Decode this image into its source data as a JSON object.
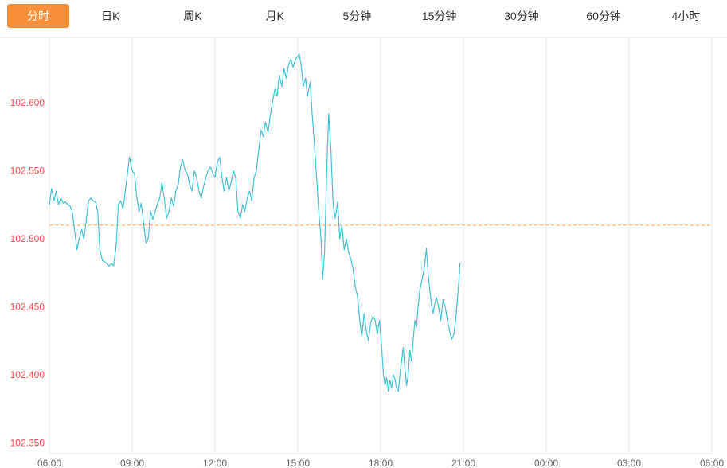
{
  "tabs": {
    "active_id": "intraday",
    "active_bg": "#f78f3d",
    "active_text": "#ffffff",
    "items": [
      {
        "id": "intraday",
        "label": "分时"
      },
      {
        "id": "daily-k",
        "label": "日K"
      },
      {
        "id": "weekly-k",
        "label": "周K"
      },
      {
        "id": "monthly-k",
        "label": "月K"
      },
      {
        "id": "5min",
        "label": "5分钟"
      },
      {
        "id": "15min",
        "label": "15分钟"
      },
      {
        "id": "30min",
        "label": "30分钟"
      },
      {
        "id": "60min",
        "label": "60分钟"
      },
      {
        "id": "4hour",
        "label": "4小时"
      }
    ]
  },
  "chart_data": {
    "type": "line",
    "x_range_hours": [
      0,
      24
    ],
    "y_range": [
      102.342,
      102.648
    ],
    "grid": "vertical-only",
    "legend": "none",
    "colors": {
      "grid": "#e8e8e8",
      "x_label": "#666666",
      "y_label": "#f05050",
      "line": "#45c1d5",
      "ref_line": "#f8a054"
    },
    "x_ticks": [
      {
        "t": 0,
        "label": "06:00"
      },
      {
        "t": 3,
        "label": "09:00"
      },
      {
        "t": 6,
        "label": "12:00"
      },
      {
        "t": 9,
        "label": "15:00"
      },
      {
        "t": 12,
        "label": "18:00"
      },
      {
        "t": 15,
        "label": "21:00"
      },
      {
        "t": 18,
        "label": "00:00"
      },
      {
        "t": 21,
        "label": "03:00"
      },
      {
        "t": 24,
        "label": "06:00"
      }
    ],
    "y_ticks": [
      {
        "v": 102.6,
        "label": "102.600"
      },
      {
        "v": 102.55,
        "label": "102.550"
      },
      {
        "v": 102.5,
        "label": "102.500"
      },
      {
        "v": 102.45,
        "label": "102.450"
      },
      {
        "v": 102.4,
        "label": "102.400"
      },
      {
        "v": 102.35,
        "label": "102.350"
      }
    ],
    "ref_line": {
      "value": 102.51,
      "style": "dashed"
    },
    "series": [
      {
        "name": "price",
        "points": [
          [
            0,
            102.525
          ],
          [
            0.08,
            102.537
          ],
          [
            0.17,
            102.528
          ],
          [
            0.25,
            102.535
          ],
          [
            0.33,
            102.525
          ],
          [
            0.42,
            102.53
          ],
          [
            0.5,
            102.526
          ],
          [
            0.58,
            102.527
          ],
          [
            0.67,
            102.525
          ],
          [
            0.75,
            102.524
          ],
          [
            0.83,
            102.52
          ],
          [
            0.92,
            102.505
          ],
          [
            1,
            102.492
          ],
          [
            1.08,
            102.5
          ],
          [
            1.17,
            102.507
          ],
          [
            1.25,
            102.5
          ],
          [
            1.33,
            102.512
          ],
          [
            1.42,
            102.528
          ],
          [
            1.5,
            102.53
          ],
          [
            1.58,
            102.528
          ],
          [
            1.67,
            102.527
          ],
          [
            1.75,
            102.52
          ],
          [
            1.83,
            102.492
          ],
          [
            1.92,
            102.484
          ],
          [
            2,
            102.483
          ],
          [
            2.08,
            102.482
          ],
          [
            2.17,
            102.48
          ],
          [
            2.25,
            102.482
          ],
          [
            2.33,
            102.48
          ],
          [
            2.42,
            102.495
          ],
          [
            2.5,
            102.525
          ],
          [
            2.58,
            102.528
          ],
          [
            2.67,
            102.522
          ],
          [
            2.75,
            102.535
          ],
          [
            2.83,
            102.548
          ],
          [
            2.9,
            102.56
          ],
          [
            3,
            102.55
          ],
          [
            3.08,
            102.548
          ],
          [
            3.17,
            102.53
          ],
          [
            3.25,
            102.52
          ],
          [
            3.33,
            102.526
          ],
          [
            3.42,
            102.51
          ],
          [
            3.5,
            102.497
          ],
          [
            3.58,
            102.5
          ],
          [
            3.67,
            102.52
          ],
          [
            3.75,
            102.514
          ],
          [
            3.83,
            102.52
          ],
          [
            3.92,
            102.526
          ],
          [
            4,
            102.53
          ],
          [
            4.08,
            102.541
          ],
          [
            4.17,
            102.528
          ],
          [
            4.25,
            102.515
          ],
          [
            4.33,
            102.52
          ],
          [
            4.42,
            102.53
          ],
          [
            4.5,
            102.524
          ],
          [
            4.58,
            102.535
          ],
          [
            4.67,
            102.54
          ],
          [
            4.75,
            102.553
          ],
          [
            4.83,
            102.558
          ],
          [
            4.92,
            102.55
          ],
          [
            5,
            102.548
          ],
          [
            5.08,
            102.54
          ],
          [
            5.17,
            102.535
          ],
          [
            5.25,
            102.55
          ],
          [
            5.33,
            102.545
          ],
          [
            5.42,
            102.535
          ],
          [
            5.5,
            102.53
          ],
          [
            5.58,
            102.538
          ],
          [
            5.67,
            102.545
          ],
          [
            5.75,
            102.55
          ],
          [
            5.83,
            102.553
          ],
          [
            5.92,
            102.548
          ],
          [
            6,
            102.545
          ],
          [
            6.08,
            102.556
          ],
          [
            6.17,
            102.56
          ],
          [
            6.25,
            102.545
          ],
          [
            6.33,
            102.535
          ],
          [
            6.42,
            102.545
          ],
          [
            6.5,
            102.535
          ],
          [
            6.58,
            102.541
          ],
          [
            6.67,
            102.55
          ],
          [
            6.75,
            102.545
          ],
          [
            6.83,
            102.52
          ],
          [
            6.92,
            102.515
          ],
          [
            7,
            102.525
          ],
          [
            7.08,
            102.52
          ],
          [
            7.17,
            102.53
          ],
          [
            7.25,
            102.535
          ],
          [
            7.33,
            102.528
          ],
          [
            7.42,
            102.545
          ],
          [
            7.5,
            102.55
          ],
          [
            7.58,
            102.565
          ],
          [
            7.67,
            102.58
          ],
          [
            7.75,
            102.575
          ],
          [
            7.83,
            102.586
          ],
          [
            7.92,
            102.578
          ],
          [
            8,
            102.59
          ],
          [
            8.08,
            102.6
          ],
          [
            8.17,
            102.61
          ],
          [
            8.25,
            102.605
          ],
          [
            8.33,
            102.62
          ],
          [
            8.42,
            102.612
          ],
          [
            8.5,
            102.625
          ],
          [
            8.58,
            102.618
          ],
          [
            8.67,
            102.628
          ],
          [
            8.75,
            102.632
          ],
          [
            8.83,
            102.626
          ],
          [
            8.92,
            102.632
          ],
          [
            9,
            102.634
          ],
          [
            9.05,
            102.636
          ],
          [
            9.12,
            102.628
          ],
          [
            9.2,
            102.612
          ],
          [
            9.28,
            102.618
          ],
          [
            9.35,
            102.605
          ],
          [
            9.45,
            102.615
          ],
          [
            9.52,
            102.592
          ],
          [
            9.6,
            102.57
          ],
          [
            9.68,
            102.545
          ],
          [
            9.76,
            102.52
          ],
          [
            9.84,
            102.5
          ],
          [
            9.9,
            102.47
          ],
          [
            9.97,
            102.49
          ],
          [
            10.05,
            102.55
          ],
          [
            10.12,
            102.592
          ],
          [
            10.2,
            102.565
          ],
          [
            10.28,
            102.525
          ],
          [
            10.36,
            102.515
          ],
          [
            10.44,
            102.527
          ],
          [
            10.52,
            102.5
          ],
          [
            10.6,
            102.51
          ],
          [
            10.68,
            102.492
          ],
          [
            10.76,
            102.5
          ],
          [
            10.84,
            102.49
          ],
          [
            10.92,
            102.485
          ],
          [
            11,
            102.478
          ],
          [
            11.08,
            102.465
          ],
          [
            11.16,
            102.458
          ],
          [
            11.24,
            102.44
          ],
          [
            11.32,
            102.428
          ],
          [
            11.4,
            102.445
          ],
          [
            11.48,
            102.432
          ],
          [
            11.56,
            102.425
          ],
          [
            11.64,
            102.438
          ],
          [
            11.72,
            102.443
          ],
          [
            11.8,
            102.44
          ],
          [
            11.88,
            102.43
          ],
          [
            11.96,
            102.44
          ],
          [
            12.04,
            102.42
          ],
          [
            12.1,
            102.4
          ],
          [
            12.16,
            102.392
          ],
          [
            12.22,
            102.398
          ],
          [
            12.28,
            102.388
          ],
          [
            12.34,
            102.396
          ],
          [
            12.4,
            102.39
          ],
          [
            12.46,
            102.4
          ],
          [
            12.52,
            102.397
          ],
          [
            12.58,
            102.39
          ],
          [
            12.64,
            102.388
          ],
          [
            12.7,
            102.4
          ],
          [
            12.76,
            102.41
          ],
          [
            12.82,
            102.42
          ],
          [
            12.88,
            102.405
          ],
          [
            12.94,
            102.392
          ],
          [
            13,
            102.4
          ],
          [
            13.06,
            102.418
          ],
          [
            13.12,
            102.41
          ],
          [
            13.18,
            102.425
          ],
          [
            13.24,
            102.44
          ],
          [
            13.3,
            102.435
          ],
          [
            13.36,
            102.45
          ],
          [
            13.42,
            102.462
          ],
          [
            13.5,
            102.47
          ],
          [
            13.58,
            102.478
          ],
          [
            13.66,
            102.493
          ],
          [
            13.72,
            102.475
          ],
          [
            13.78,
            102.462
          ],
          [
            13.84,
            102.452
          ],
          [
            13.9,
            102.445
          ],
          [
            13.96,
            102.452
          ],
          [
            14.02,
            102.457
          ],
          [
            14.1,
            102.45
          ],
          [
            14.18,
            102.44
          ],
          [
            14.26,
            102.455
          ],
          [
            14.34,
            102.45
          ],
          [
            14.42,
            102.44
          ],
          [
            14.5,
            102.432
          ],
          [
            14.58,
            102.426
          ],
          [
            14.66,
            102.43
          ],
          [
            14.74,
            102.445
          ],
          [
            14.82,
            102.465
          ],
          [
            14.88,
            102.482
          ]
        ]
      }
    ]
  }
}
